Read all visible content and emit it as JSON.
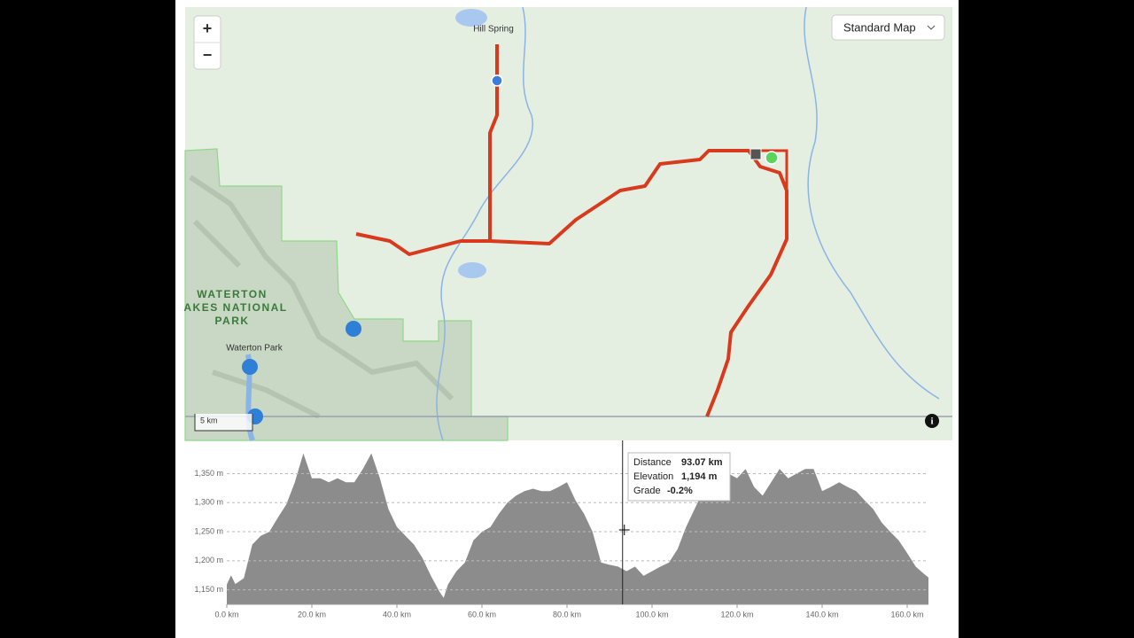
{
  "map": {
    "place_labels": [
      "Hill Spring",
      "Waterton Park"
    ],
    "park_label": [
      "WATERTON",
      "AKES NATIONAL",
      "PARK"
    ],
    "map_style": "Standard Map",
    "scale": "5 km",
    "zoom_in": "+",
    "zoom_out": "−"
  },
  "tooltip": {
    "rows": [
      [
        "Distance",
        "93.07 km"
      ],
      [
        "Elevation",
        "1,194 m"
      ],
      [
        "Grade",
        "-0.2%"
      ]
    ]
  },
  "chart_data": {
    "type": "area",
    "color": "#8c8c8c",
    "x": [
      0,
      1,
      2,
      4,
      6,
      8,
      10,
      12,
      14,
      16,
      18,
      20,
      22,
      24,
      26,
      28,
      30,
      32,
      34,
      36,
      38,
      40,
      42,
      44,
      46,
      48,
      50,
      51,
      52,
      54,
      56,
      58,
      60,
      62,
      64,
      66,
      68,
      70,
      72,
      74,
      76,
      78,
      80,
      82,
      84,
      86,
      88,
      90,
      92,
      94,
      96,
      98,
      100,
      102,
      104,
      106,
      108,
      110,
      112,
      114,
      116,
      118,
      120,
      122,
      124,
      126,
      128,
      130,
      132,
      134,
      136,
      138,
      140,
      142,
      144,
      146,
      148,
      150,
      152,
      154,
      156,
      158,
      160,
      162,
      164,
      165
    ],
    "values": [
      1159,
      1175,
      1160,
      1170,
      1228,
      1243,
      1250,
      1274,
      1297,
      1335,
      1385,
      1342,
      1342,
      1335,
      1342,
      1335,
      1335,
      1358,
      1385,
      1342,
      1289,
      1258,
      1243,
      1228,
      1205,
      1174,
      1147,
      1136,
      1159,
      1182,
      1197,
      1235,
      1250,
      1258,
      1281,
      1300,
      1312,
      1320,
      1324,
      1320,
      1320,
      1327,
      1335,
      1304,
      1281,
      1250,
      1197,
      1193,
      1190,
      1182,
      1190,
      1174,
      1182,
      1190,
      1197,
      1220,
      1258,
      1289,
      1320,
      1342,
      1358,
      1350,
      1342,
      1358,
      1327,
      1312,
      1335,
      1358,
      1342,
      1350,
      1358,
      1358,
      1320,
      1327,
      1335,
      1327,
      1320,
      1304,
      1289,
      1266,
      1250,
      1235,
      1213,
      1190,
      1177,
      1171
    ],
    "xlim": [
      0,
      165
    ],
    "ylim": [
      1125,
      1395
    ],
    "xticks": [
      {
        "value": 0,
        "label": "0.0 km"
      },
      {
        "value": 20,
        "label": "20.0 km"
      },
      {
        "value": 40,
        "label": "40.0 km"
      },
      {
        "value": 60,
        "label": "60.0 km"
      },
      {
        "value": 80,
        "label": "80.0 km"
      },
      {
        "value": 100,
        "label": "100.0 km"
      },
      {
        "value": 120,
        "label": "120.0 km"
      },
      {
        "value": 140,
        "label": "140.0 km"
      },
      {
        "value": 160,
        "label": "160.0 km"
      }
    ],
    "yticks": [
      {
        "value": 1150,
        "label": "1,150 m"
      },
      {
        "value": 1200,
        "label": "1,200 m"
      },
      {
        "value": 1250,
        "label": "1,250 m"
      },
      {
        "value": 1300,
        "label": "1,300 m"
      },
      {
        "value": 1350,
        "label": "1,350 m"
      }
    ],
    "grid": true,
    "cursor_x": 93.07
  }
}
